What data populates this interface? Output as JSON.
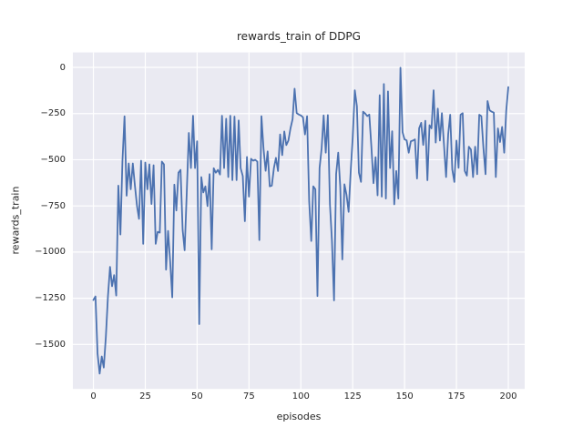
{
  "figure": {
    "background": "#ffffff"
  },
  "chart_data": {
    "type": "line",
    "title": "rewards_train of DDPG",
    "xlabel": "episodes",
    "ylabel": "rewards_train",
    "grid": true,
    "legend_position": "none",
    "plot_bg": "#eaeaf2",
    "grid_color": "#ffffff",
    "text_color": "#262626",
    "line_color": "#4c72b0",
    "xlim": [
      -9.9,
      207.9
    ],
    "ylim": [
      -1741,
      81
    ],
    "x_ticks": [
      0,
      25,
      50,
      75,
      100,
      125,
      150,
      175,
      200
    ],
    "y_ticks": [
      0,
      -250,
      -500,
      -750,
      -1000,
      -1250,
      -1500
    ],
    "x_tick_labels": [
      "0",
      "25",
      "50",
      "75",
      "100",
      "125",
      "150",
      "175",
      "200"
    ],
    "y_tick_labels": [
      "0",
      "−250",
      "−500",
      "−750",
      "−1000",
      "−1250",
      "−1500"
    ],
    "series": [
      {
        "name": "rewards_train",
        "color": "#4c72b0",
        "x_start": 0,
        "x_step": 1,
        "values": [
          -1260,
          -1240,
          -1550,
          -1658,
          -1565,
          -1625,
          -1460,
          -1240,
          -1080,
          -1185,
          -1125,
          -1235,
          -640,
          -905,
          -510,
          -265,
          -695,
          -520,
          -660,
          -520,
          -640,
          -750,
          -820,
          -505,
          -955,
          -515,
          -660,
          -525,
          -740,
          -530,
          -955,
          -890,
          -895,
          -510,
          -525,
          -1095,
          -885,
          -1050,
          -1245,
          -635,
          -775,
          -570,
          -555,
          -880,
          -990,
          -680,
          -355,
          -545,
          -262,
          -545,
          -400,
          -1390,
          -594,
          -677,
          -644,
          -751,
          -578,
          -985,
          -546,
          -570,
          -555,
          -580,
          -262,
          -545,
          -278,
          -594,
          -262,
          -610,
          -266,
          -610,
          -287,
          -546,
          -588,
          -833,
          -485,
          -700,
          -495,
          -505,
          -500,
          -510,
          -935,
          -264,
          -440,
          -560,
          -455,
          -644,
          -640,
          -545,
          -490,
          -561,
          -363,
          -475,
          -347,
          -421,
          -396,
          -330,
          -280,
          -115,
          -248,
          -255,
          -260,
          -270,
          -363,
          -264,
          -725,
          -940,
          -644,
          -660,
          -1238,
          -545,
          -437,
          -260,
          -462,
          -258,
          -742,
          -940,
          -1262,
          -578,
          -462,
          -644,
          -1040,
          -633,
          -690,
          -782,
          -570,
          -380,
          -124,
          -210,
          -570,
          -620,
          -240,
          -250,
          -264,
          -255,
          -430,
          -627,
          -486,
          -693,
          -150,
          -700,
          -90,
          -710,
          -130,
          -545,
          -346,
          -742,
          -561,
          -710,
          -2,
          -350,
          -390,
          -395,
          -462,
          -400,
          -396,
          -390,
          -602,
          -330,
          -300,
          -420,
          -289,
          -611,
          -313,
          -330,
          -124,
          -407,
          -223,
          -396,
          -248,
          -420,
          -594,
          -363,
          -256,
          -553,
          -620,
          -396,
          -544,
          -256,
          -248,
          -561,
          -586,
          -429,
          -445,
          -594,
          -429,
          -578,
          -256,
          -264,
          -437,
          -578,
          -182,
          -232,
          -240,
          -245,
          -594,
          -330,
          -404,
          -322,
          -462,
          -237,
          -107
        ]
      }
    ]
  }
}
